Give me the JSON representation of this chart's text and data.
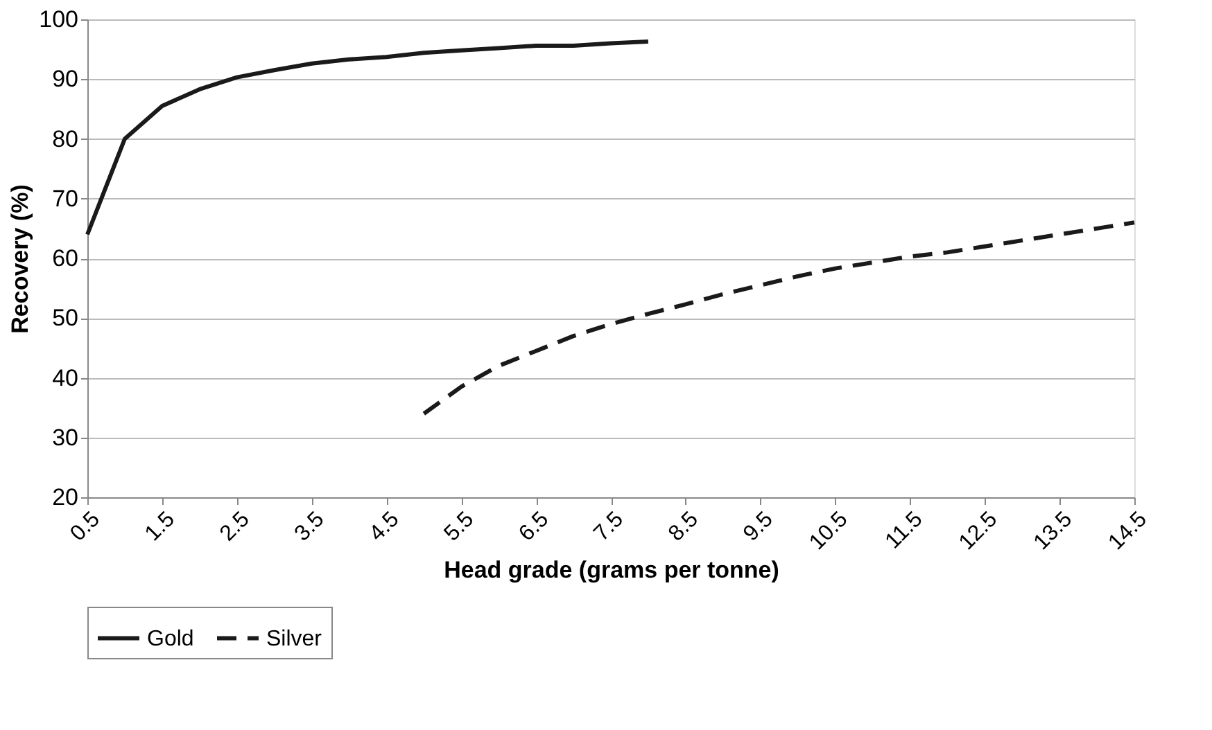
{
  "chart_data": {
    "type": "line",
    "xlabel": "Head grade (grams per tonne)",
    "ylabel": "Recovery (%)",
    "xlim": [
      0.5,
      14.5
    ],
    "xticks": [
      0.5,
      1.5,
      2.5,
      3.5,
      4.5,
      5.5,
      6.5,
      7.5,
      8.5,
      9.5,
      10.5,
      11.5,
      12.5,
      13.5,
      14.5
    ],
    "ylim": [
      20,
      100
    ],
    "yticks": [
      20,
      30,
      40,
      50,
      60,
      70,
      80,
      90,
      100
    ],
    "grid": "y",
    "legend": "bottom",
    "marker": "none",
    "series": [
      {
        "name": "Gold",
        "color": "#1a1a1a",
        "line_style": "solid",
        "x": [
          0.5,
          1,
          1.5,
          2,
          2.5,
          3,
          3.5,
          4,
          4.5,
          5,
          5.5,
          6,
          6.5,
          7,
          7.5,
          8
        ],
        "values": [
          64,
          80,
          85.5,
          88.3,
          90.3,
          91.5,
          92.6,
          93.3,
          93.7,
          94.4,
          94.8,
          95.2,
          95.6,
          95.6,
          96,
          96.3
        ]
      },
      {
        "name": "Silver",
        "color": "#1a1a1a",
        "line_style": "dashed",
        "x": [
          5,
          5.5,
          6,
          6.5,
          7,
          7.5,
          8,
          8.5,
          9,
          9.5,
          10,
          10.5,
          11,
          11.5,
          12,
          12.5,
          13,
          13.5,
          14,
          14.5
        ],
        "values": [
          34,
          38.5,
          42,
          44.5,
          47,
          49,
          50.7,
          52.3,
          54,
          55.5,
          57,
          58.3,
          59.3,
          60.3,
          61,
          62,
          63,
          64,
          65,
          66
        ]
      }
    ]
  }
}
